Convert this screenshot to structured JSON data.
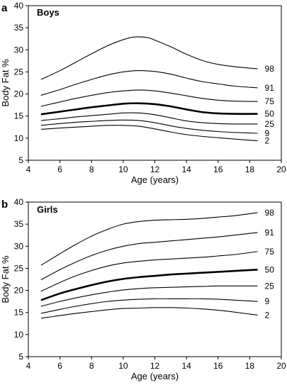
{
  "chart_data": [
    {
      "panel": "a",
      "type": "line",
      "title": "Boys",
      "xlabel": "Age (years)",
      "ylabel": "Body Fat %",
      "xlim": [
        4,
        20
      ],
      "ylim": [
        5,
        40
      ],
      "xticks": [
        4,
        6,
        8,
        10,
        12,
        14,
        16,
        18,
        20
      ],
      "yticks": [
        5,
        10,
        15,
        20,
        25,
        30,
        35,
        40
      ],
      "grid": false,
      "highlighted_series": "50",
      "series": [
        {
          "name": "98",
          "x": [
            4.8,
            6,
            7,
            8,
            9,
            10,
            10.7,
            11.5,
            12,
            13,
            14,
            15,
            16,
            17,
            18.5
          ],
          "values": [
            23.3,
            25.3,
            27.2,
            29.1,
            30.9,
            32.3,
            32.9,
            32.8,
            32.2,
            30.7,
            29.0,
            27.6,
            26.7,
            26.2,
            25.7
          ]
        },
        {
          "name": "91",
          "x": [
            4.8,
            6,
            7,
            8,
            9,
            10,
            11,
            12,
            13,
            14,
            15,
            16,
            17,
            18.5
          ],
          "values": [
            19.7,
            21.0,
            22.2,
            23.3,
            24.3,
            25.0,
            25.3,
            25.1,
            24.5,
            23.6,
            22.8,
            22.3,
            21.8,
            21.4
          ]
        },
        {
          "name": "75",
          "x": [
            4.8,
            6,
            7,
            8,
            9,
            10,
            11,
            12,
            13,
            14,
            15,
            16,
            17,
            18.5
          ],
          "values": [
            17.2,
            18.2,
            19.0,
            19.7,
            20.3,
            20.7,
            20.9,
            20.7,
            20.2,
            19.6,
            19.0,
            18.6,
            18.4,
            18.3
          ]
        },
        {
          "name": "50",
          "x": [
            4.8,
            6,
            7,
            8,
            9,
            10,
            11,
            12,
            13,
            14,
            15,
            16,
            17,
            18.5
          ],
          "values": [
            15.4,
            16.0,
            16.5,
            17.0,
            17.4,
            17.8,
            17.9,
            17.7,
            17.2,
            16.5,
            15.9,
            15.6,
            15.5,
            15.5
          ]
        },
        {
          "name": "25",
          "x": [
            4.8,
            6,
            7,
            8,
            9,
            10,
            11,
            12,
            13,
            14,
            15,
            16,
            17,
            18.5
          ],
          "values": [
            14.0,
            14.4,
            14.8,
            15.1,
            15.4,
            15.7,
            15.7,
            15.3,
            14.6,
            13.9,
            13.5,
            13.3,
            13.2,
            13.2
          ]
        },
        {
          "name": "9",
          "x": [
            4.8,
            6,
            7,
            8,
            9,
            10,
            11,
            12,
            13,
            14,
            15,
            16,
            17,
            18.5
          ],
          "values": [
            12.9,
            13.3,
            13.6,
            13.8,
            14.0,
            14.1,
            14.0,
            13.5,
            12.8,
            12.2,
            11.8,
            11.5,
            11.3,
            11.1
          ]
        },
        {
          "name": "2",
          "x": [
            4.8,
            6,
            7,
            8,
            9,
            10,
            11,
            12,
            13,
            14,
            15,
            16,
            17,
            18.5
          ],
          "values": [
            12.0,
            12.3,
            12.5,
            12.7,
            12.9,
            12.9,
            12.7,
            12.1,
            11.4,
            10.8,
            10.4,
            10.1,
            9.8,
            9.4
          ]
        }
      ]
    },
    {
      "panel": "b",
      "type": "line",
      "title": "Girls",
      "xlabel": "Age (years)",
      "ylabel": "Body Fat %",
      "xlim": [
        4,
        20
      ],
      "ylim": [
        5,
        40
      ],
      "xticks": [
        4,
        6,
        8,
        10,
        12,
        14,
        16,
        18,
        20
      ],
      "yticks": [
        5,
        10,
        15,
        20,
        25,
        30,
        35,
        40
      ],
      "grid": false,
      "highlighted_series": "50",
      "series": [
        {
          "name": "98",
          "x": [
            4.8,
            6,
            7,
            8,
            9,
            10,
            11,
            12,
            13,
            14,
            15,
            16,
            17,
            18.5
          ],
          "values": [
            25.7,
            28.3,
            30.4,
            32.3,
            33.8,
            35.0,
            35.6,
            35.9,
            36.0,
            36.1,
            36.3,
            36.6,
            36.9,
            37.6
          ]
        },
        {
          "name": "91",
          "x": [
            4.8,
            6,
            7,
            8,
            9,
            10,
            11,
            12,
            13,
            14,
            15,
            16,
            17,
            18.5
          ],
          "values": [
            22.4,
            24.7,
            26.4,
            27.9,
            29.1,
            30.0,
            30.6,
            30.9,
            31.2,
            31.5,
            31.8,
            32.1,
            32.5,
            33.1
          ]
        },
        {
          "name": "75",
          "x": [
            4.8,
            6,
            7,
            8,
            9,
            10,
            11,
            12,
            13,
            14,
            15,
            16,
            17,
            18.5
          ],
          "values": [
            19.8,
            21.8,
            23.3,
            24.5,
            25.5,
            26.2,
            26.6,
            26.9,
            27.1,
            27.3,
            27.5,
            27.8,
            28.1,
            28.8
          ]
        },
        {
          "name": "50",
          "x": [
            4.8,
            6,
            7,
            8,
            9,
            10,
            11,
            12,
            13,
            14,
            15,
            16,
            17,
            18.5
          ],
          "values": [
            17.8,
            19.3,
            20.3,
            21.2,
            22.0,
            22.6,
            23.0,
            23.3,
            23.6,
            23.8,
            24.0,
            24.2,
            24.4,
            24.7
          ]
        },
        {
          "name": "25",
          "x": [
            4.8,
            6,
            7,
            8,
            9,
            10,
            11,
            12,
            13,
            14,
            15,
            16,
            17,
            18.5
          ],
          "values": [
            16.4,
            17.5,
            18.3,
            19.0,
            19.6,
            20.1,
            20.4,
            20.6,
            20.7,
            20.8,
            20.9,
            21.0,
            21.0,
            21.0
          ]
        },
        {
          "name": "9",
          "x": [
            4.8,
            6,
            7,
            8,
            9,
            10,
            11,
            12,
            13,
            14,
            15,
            16,
            17,
            18.5
          ],
          "values": [
            14.8,
            15.7,
            16.4,
            17.0,
            17.5,
            17.8,
            18.0,
            18.1,
            18.1,
            18.1,
            18.1,
            18.0,
            17.8,
            17.5
          ]
        },
        {
          "name": "2",
          "x": [
            4.8,
            6,
            7,
            8,
            9,
            10,
            11,
            12,
            13,
            14,
            15,
            16,
            17,
            18.5
          ],
          "values": [
            13.7,
            14.3,
            14.8,
            15.2,
            15.6,
            15.9,
            16.0,
            16.1,
            16.1,
            16.0,
            15.8,
            15.5,
            15.1,
            14.4
          ]
        }
      ]
    }
  ]
}
